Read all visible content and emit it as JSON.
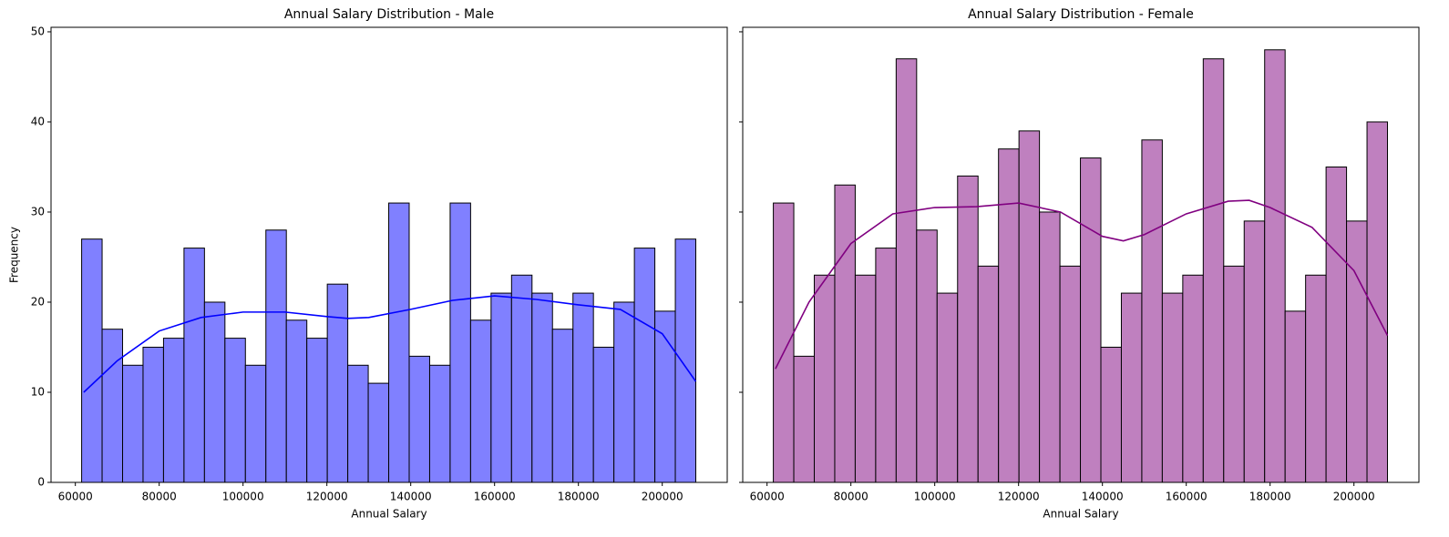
{
  "chart_data": [
    {
      "type": "histogram",
      "title": "Annual Salary Distribution - Male",
      "xlabel": "Annual Salary",
      "ylabel": "Frequency",
      "bins": [
        61500,
        66383,
        71267,
        76150,
        81033,
        85917,
        90800,
        95683,
        100567,
        105450,
        110333,
        115217,
        120100,
        124983,
        129867,
        134750,
        139633,
        144517,
        149400,
        154283,
        159167,
        164050,
        168933,
        173817,
        178700,
        183583,
        188467,
        193350,
        198233,
        203117,
        208000
      ],
      "values": [
        27,
        17,
        13,
        15,
        16,
        26,
        20,
        16,
        13,
        28,
        18,
        16,
        22,
        13,
        11,
        31,
        14,
        13,
        31,
        18,
        21,
        23,
        21,
        17,
        21,
        15,
        20,
        26,
        19,
        27
      ],
      "color": "#8080ff",
      "kde": {
        "color": "#0000ff",
        "x": [
          62000,
          70000,
          80000,
          90000,
          100000,
          110000,
          120000,
          125000,
          130000,
          140000,
          150000,
          160000,
          170000,
          180000,
          190000,
          200000,
          208000
        ],
        "values": [
          10,
          13.5,
          16.8,
          18.3,
          18.9,
          18.9,
          18.4,
          18.2,
          18.3,
          19.2,
          20.2,
          20.7,
          20.3,
          19.7,
          19.2,
          16.5,
          11.2
        ]
      },
      "xlim": [
        54200,
        215500
      ],
      "ylim": [
        0,
        50.5
      ],
      "xticks": [
        60000,
        80000,
        100000,
        120000,
        140000,
        160000,
        180000,
        200000
      ],
      "yticks": [
        0,
        10,
        20,
        30,
        40,
        50
      ]
    },
    {
      "type": "histogram",
      "title": "Annual Salary Distribution - Female",
      "xlabel": "Annual Salary",
      "bins": [
        61500,
        66383,
        71267,
        76150,
        81033,
        85917,
        90800,
        95683,
        100567,
        105450,
        110333,
        115217,
        120100,
        124983,
        129867,
        134750,
        139633,
        144517,
        149400,
        154283,
        159167,
        164050,
        168933,
        173817,
        178700,
        183583,
        188467,
        193350,
        198233,
        203117,
        208000
      ],
      "values": [
        31,
        14,
        23,
        33,
        23,
        26,
        47,
        28,
        21,
        34,
        24,
        37,
        39,
        30,
        24,
        36,
        15,
        21,
        38,
        21,
        23,
        47,
        24,
        29,
        48,
        19,
        23,
        35,
        29,
        40
      ],
      "color": "#bf80bf",
      "kde": {
        "color": "#800080",
        "x": [
          62000,
          70000,
          80000,
          90000,
          100000,
          110000,
          120000,
          130000,
          140000,
          145000,
          150000,
          160000,
          170000,
          175000,
          180000,
          190000,
          200000,
          208000
        ],
        "values": [
          12.6,
          20,
          26.5,
          29.8,
          30.5,
          30.6,
          31,
          30,
          27.3,
          26.8,
          27.5,
          29.8,
          31.2,
          31.3,
          30.5,
          28.3,
          23.5,
          16.3
        ]
      },
      "xlim": [
        54200,
        215500
      ],
      "ylim": [
        0,
        50.5
      ],
      "xticks": [
        60000,
        80000,
        100000,
        120000,
        140000,
        160000,
        180000,
        200000
      ],
      "yticks": [
        0,
        10,
        20,
        30,
        40,
        50
      ],
      "show_ytick_labels": false
    }
  ]
}
